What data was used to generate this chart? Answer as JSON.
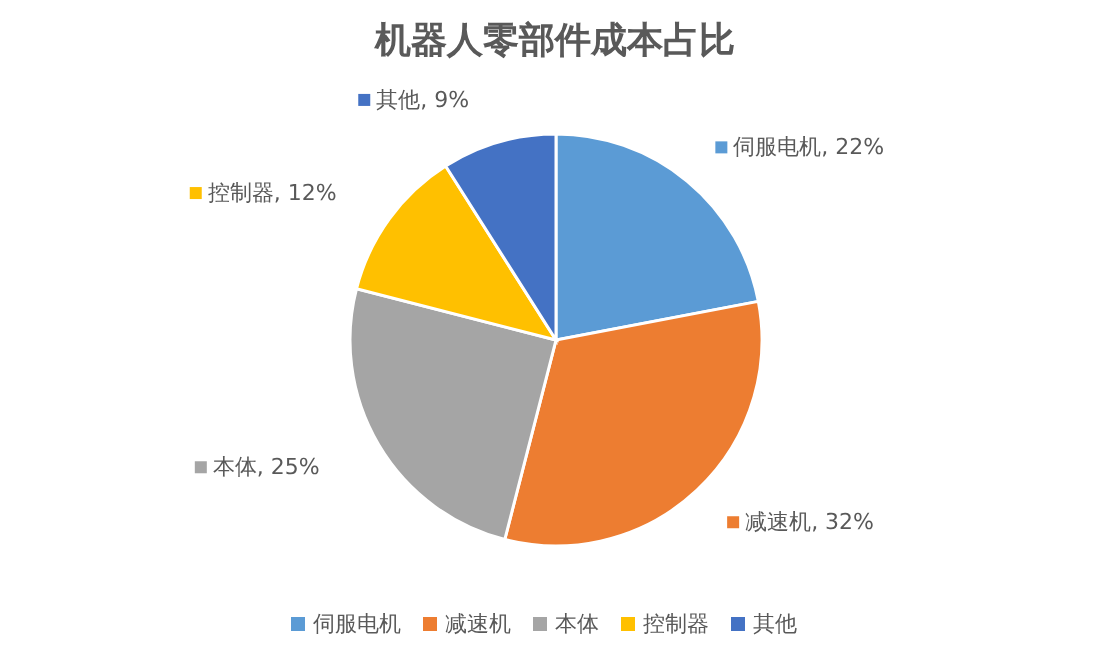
{
  "chart_data": {
    "type": "pie",
    "title": "机器人零部件成本占比",
    "categories": [
      "伺服电机",
      "减速机",
      "本体",
      "控制器",
      "其他"
    ],
    "values": [
      22,
      32,
      25,
      12,
      9
    ],
    "colors": [
      "#5b9bd5",
      "#ed7d31",
      "#a5a5a5",
      "#ffc000",
      "#4472c4"
    ],
    "value_labels": [
      "伺服电机, 22%",
      "减速机, 32%",
      "本体, 25%",
      "控制器, 12%",
      "其他, 9%"
    ],
    "legend": "bottom"
  }
}
